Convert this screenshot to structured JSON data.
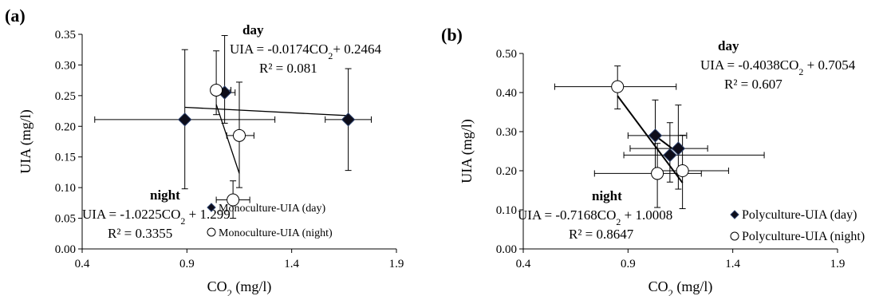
{
  "chart_data": [
    {
      "type": "scatter",
      "panel_label": "(a)",
      "xlabel": "CO2 (mg/l)",
      "ylabel": "UIA (mg/l)",
      "xlim": [
        0.4,
        1.9
      ],
      "ylim": [
        0,
        0.35
      ],
      "x_ticks": [
        "0.4",
        "0.9",
        "1.4",
        "1.9"
      ],
      "y_ticks": [
        "0.00",
        "0.05",
        "0.10",
        "0.15",
        "0.20",
        "0.25",
        "0.30",
        "0.35"
      ],
      "series": [
        {
          "name": "Monoculture-UIA (day)",
          "marker": "diamond",
          "points": [
            {
              "x": 0.89,
              "y": 0.211,
              "xerr": [
                0.46,
                1.32
              ],
              "yerr": [
                0.098,
                0.325
              ]
            },
            {
              "x": 1.08,
              "y": 0.255,
              "xerr": [
                1.03,
                1.13
              ],
              "yerr": [
                0.205,
                0.348
              ]
            },
            {
              "x": 1.67,
              "y": 0.211,
              "xerr": [
                1.56,
                1.78
              ],
              "yerr": [
                0.128,
                0.294
              ]
            }
          ],
          "trend": {
            "equation": "UIA = -0.0174CO2+ 0.2464",
            "r2": "R² = 0.081",
            "label": "day",
            "x_range": [
              0.89,
              1.67
            ]
          }
        },
        {
          "name": "Monoculture-UIA (night)",
          "marker": "circle",
          "points": [
            {
              "x": 1.04,
              "y": 0.259,
              "xerr": [
                1.02,
                1.11
              ],
              "yerr": [
                0.219,
                0.323
              ]
            },
            {
              "x": 1.15,
              "y": 0.185,
              "xerr": [
                1.09,
                1.22
              ],
              "yerr": [
                0.1,
                0.272
              ]
            },
            {
              "x": 1.12,
              "y": 0.08,
              "xerr": [
                1.04,
                1.2
              ],
              "yerr": [
                0.05,
                0.111
              ]
            }
          ],
          "trend": {
            "equation": "UIA = -1.0225CO2 + 1.299",
            "r2": "R² = 0.3355",
            "label": "night",
            "x_range": [
              1.04,
              1.15
            ]
          }
        }
      ]
    },
    {
      "type": "scatter",
      "panel_label": "(b)",
      "xlabel": "CO2 (mg/l)",
      "ylabel": "UIA (mg/l)",
      "xlim": [
        0.4,
        1.9
      ],
      "ylim": [
        0,
        0.5
      ],
      "x_ticks": [
        "0.4",
        "0.9",
        "1.4",
        "1.9"
      ],
      "y_ticks": [
        "0.00",
        "0.10",
        "0.20",
        "0.30",
        "0.40",
        "0.50"
      ],
      "series": [
        {
          "name": "Polyculture-UIA (day)",
          "marker": "diamond",
          "points": [
            {
              "x": 1.03,
              "y": 0.29,
              "xerr": [
                0.9,
                1.18
              ],
              "yerr": [
                0.196,
                0.381
              ]
            },
            {
              "x": 1.1,
              "y": 0.24,
              "xerr": [
                0.88,
                1.55
              ],
              "yerr": [
                0.171,
                0.323
              ]
            },
            {
              "x": 1.14,
              "y": 0.257,
              "xerr": [
                0.91,
                1.28
              ],
              "yerr": [
                0.153,
                0.368
              ]
            }
          ],
          "trend": {
            "equation": "UIA = -0.4038CO2 + 0.7054",
            "r2": "R² = 0.607",
            "label": "day",
            "x_range": [
              1.03,
              1.14
            ]
          }
        },
        {
          "name": "Polyculture-UIA (night)",
          "marker": "circle",
          "points": [
            {
              "x": 0.85,
              "y": 0.415,
              "xerr": [
                0.55,
                1.13
              ],
              "yerr": [
                0.358,
                0.468
              ]
            },
            {
              "x": 1.04,
              "y": 0.193,
              "xerr": [
                0.74,
                1.25
              ],
              "yerr": [
                0.106,
                0.27
              ]
            },
            {
              "x": 1.16,
              "y": 0.2,
              "xerr": [
                1.03,
                1.38
              ],
              "yerr": [
                0.103,
                0.291
              ]
            }
          ],
          "trend": {
            "equation": "UIA = -0.7168CO2 + 1.0008",
            "r2": "R² = 0.8647",
            "label": "night",
            "x_range": [
              0.85,
              1.16
            ]
          }
        }
      ]
    }
  ]
}
